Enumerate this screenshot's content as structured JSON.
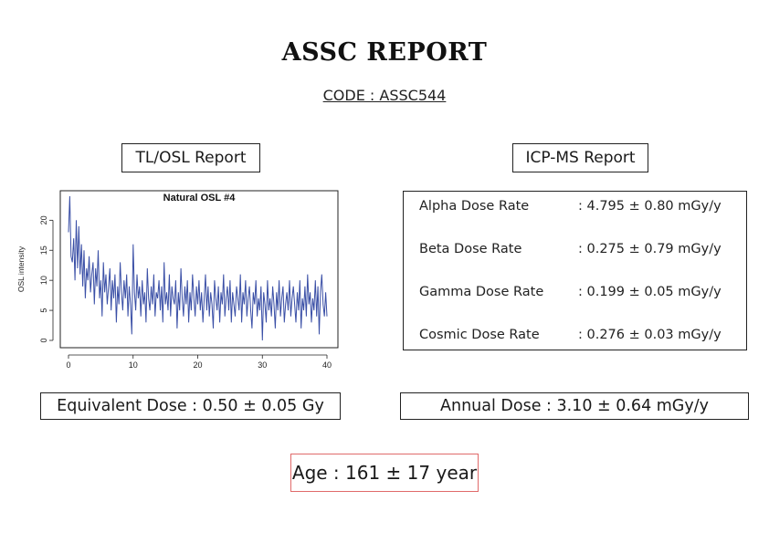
{
  "title": "ASSC REPORT",
  "code": "CODE : ASSC544",
  "sections": {
    "tlosl": "TL/OSL Report",
    "icpms": "ICP-MS Report"
  },
  "dose_rates": [
    {
      "label": "Alpha Dose Rate",
      "value": ": 4.795 ± 0.80 mGy/y"
    },
    {
      "label": "Beta Dose Rate",
      "value": ": 0.275 ± 0.79 mGy/y"
    },
    {
      "label": "Gamma Dose Rate",
      "value": ": 0.199 ± 0.05 mGy/y"
    },
    {
      "label": "Cosmic Dose Rate",
      "value": ": 0.276 ± 0.03 mGy/y"
    }
  ],
  "equivalent_dose": "Equivalent Dose : 0.50 ± 0.05 Gy",
  "annual_dose": "Annual Dose : 3.10 ± 0.64 mGy/y",
  "age": "Age : 161 ± 17 year",
  "colors": {
    "line": "#3a4fa6",
    "age_border": "#e06a6a"
  },
  "chart_data": {
    "type": "line",
    "title": "Natural OSL #4",
    "xlabel": "",
    "ylabel": "OSL intensity",
    "xlim": [
      0,
      40
    ],
    "ylim": [
      0,
      24
    ],
    "xticks": [
      0,
      10,
      20,
      30,
      40
    ],
    "yticks": [
      0,
      5,
      10,
      15,
      20
    ],
    "grid": false,
    "x": [
      0,
      0.2,
      0.4,
      0.6,
      0.8,
      1,
      1.2,
      1.4,
      1.6,
      1.8,
      2,
      2.2,
      2.4,
      2.6,
      2.8,
      3,
      3.2,
      3.4,
      3.6,
      3.8,
      4,
      4.2,
      4.4,
      4.6,
      4.8,
      5,
      5.2,
      5.4,
      5.6,
      5.8,
      6,
      6.2,
      6.4,
      6.6,
      6.8,
      7,
      7.2,
      7.4,
      7.6,
      7.8,
      8,
      8.2,
      8.4,
      8.6,
      8.8,
      9,
      9.2,
      9.4,
      9.6,
      9.8,
      10,
      10.2,
      10.4,
      10.6,
      10.8,
      11,
      11.2,
      11.4,
      11.6,
      11.8,
      12,
      12.2,
      12.4,
      12.6,
      12.8,
      13,
      13.2,
      13.4,
      13.6,
      13.8,
      14,
      14.2,
      14.4,
      14.6,
      14.8,
      15,
      15.2,
      15.4,
      15.6,
      15.8,
      16,
      16.2,
      16.4,
      16.6,
      16.8,
      17,
      17.2,
      17.4,
      17.6,
      17.8,
      18,
      18.2,
      18.4,
      18.6,
      18.8,
      19,
      19.2,
      19.4,
      19.6,
      19.8,
      20,
      20.2,
      20.4,
      20.6,
      20.8,
      21,
      21.2,
      21.4,
      21.6,
      21.8,
      22,
      22.2,
      22.4,
      22.6,
      22.8,
      23,
      23.2,
      23.4,
      23.6,
      23.8,
      24,
      24.2,
      24.4,
      24.6,
      24.8,
      25,
      25.2,
      25.4,
      25.6,
      25.8,
      26,
      26.2,
      26.4,
      26.6,
      26.8,
      27,
      27.2,
      27.4,
      27.6,
      27.8,
      28,
      28.2,
      28.4,
      28.6,
      28.8,
      29,
      29.2,
      29.4,
      29.6,
      29.8,
      30,
      30.2,
      30.4,
      30.6,
      30.8,
      31,
      31.2,
      31.4,
      31.6,
      31.8,
      32,
      32.2,
      32.4,
      32.6,
      32.8,
      33,
      33.2,
      33.4,
      33.6,
      33.8,
      34,
      34.2,
      34.4,
      34.6,
      34.8,
      35,
      35.2,
      35.4,
      35.6,
      35.8,
      36,
      36.2,
      36.4,
      36.6,
      36.8,
      37,
      37.2,
      37.4,
      37.6,
      37.8,
      38,
      38.2,
      38.4,
      38.6,
      38.8,
      39,
      39.2,
      39.4,
      39.6,
      39.8,
      40
    ],
    "series": [
      {
        "values": [
          18,
          24,
          14,
          13,
          17,
          10,
          20,
          12,
          19,
          11,
          16,
          9,
          15,
          7,
          12,
          10,
          14,
          8,
          11,
          13,
          6,
          12,
          9,
          15,
          7,
          10,
          4,
          13,
          8,
          11,
          6,
          9,
          12,
          5,
          10,
          7,
          11,
          3,
          9,
          6,
          13,
          8,
          5,
          10,
          7,
          11,
          4,
          9,
          6,
          1,
          16,
          8,
          5,
          11,
          7,
          9,
          4,
          10,
          6,
          8,
          3,
          12,
          7,
          5,
          9,
          6,
          11,
          4,
          8,
          7,
          10,
          5,
          9,
          3,
          13,
          6,
          8,
          5,
          11,
          4,
          9,
          7,
          6,
          10,
          2,
          8,
          5,
          12,
          7,
          4,
          9,
          6,
          10,
          3,
          8,
          5,
          11,
          7,
          4,
          9,
          6,
          10,
          5,
          8,
          3,
          7,
          11,
          5,
          9,
          4,
          8,
          6,
          2,
          10,
          7,
          5,
          9,
          3,
          8,
          6,
          11,
          4,
          7,
          9,
          5,
          10,
          3,
          8,
          6,
          4,
          9,
          7,
          5,
          11,
          3,
          8,
          6,
          10,
          4,
          7,
          9,
          5,
          2,
          8,
          6,
          10,
          4,
          7,
          5,
          9,
          0,
          8,
          6,
          3,
          10,
          5,
          7,
          4,
          9,
          6,
          2,
          8,
          5,
          10,
          4,
          7,
          9,
          3,
          6,
          8,
          5,
          10,
          4,
          7,
          9,
          6,
          3,
          8,
          5,
          10,
          2,
          7,
          5,
          9,
          4,
          11,
          6,
          8,
          3,
          7,
          5,
          10,
          4,
          9,
          1,
          8,
          11,
          6,
          4,
          8,
          4
        ]
      }
    ]
  }
}
